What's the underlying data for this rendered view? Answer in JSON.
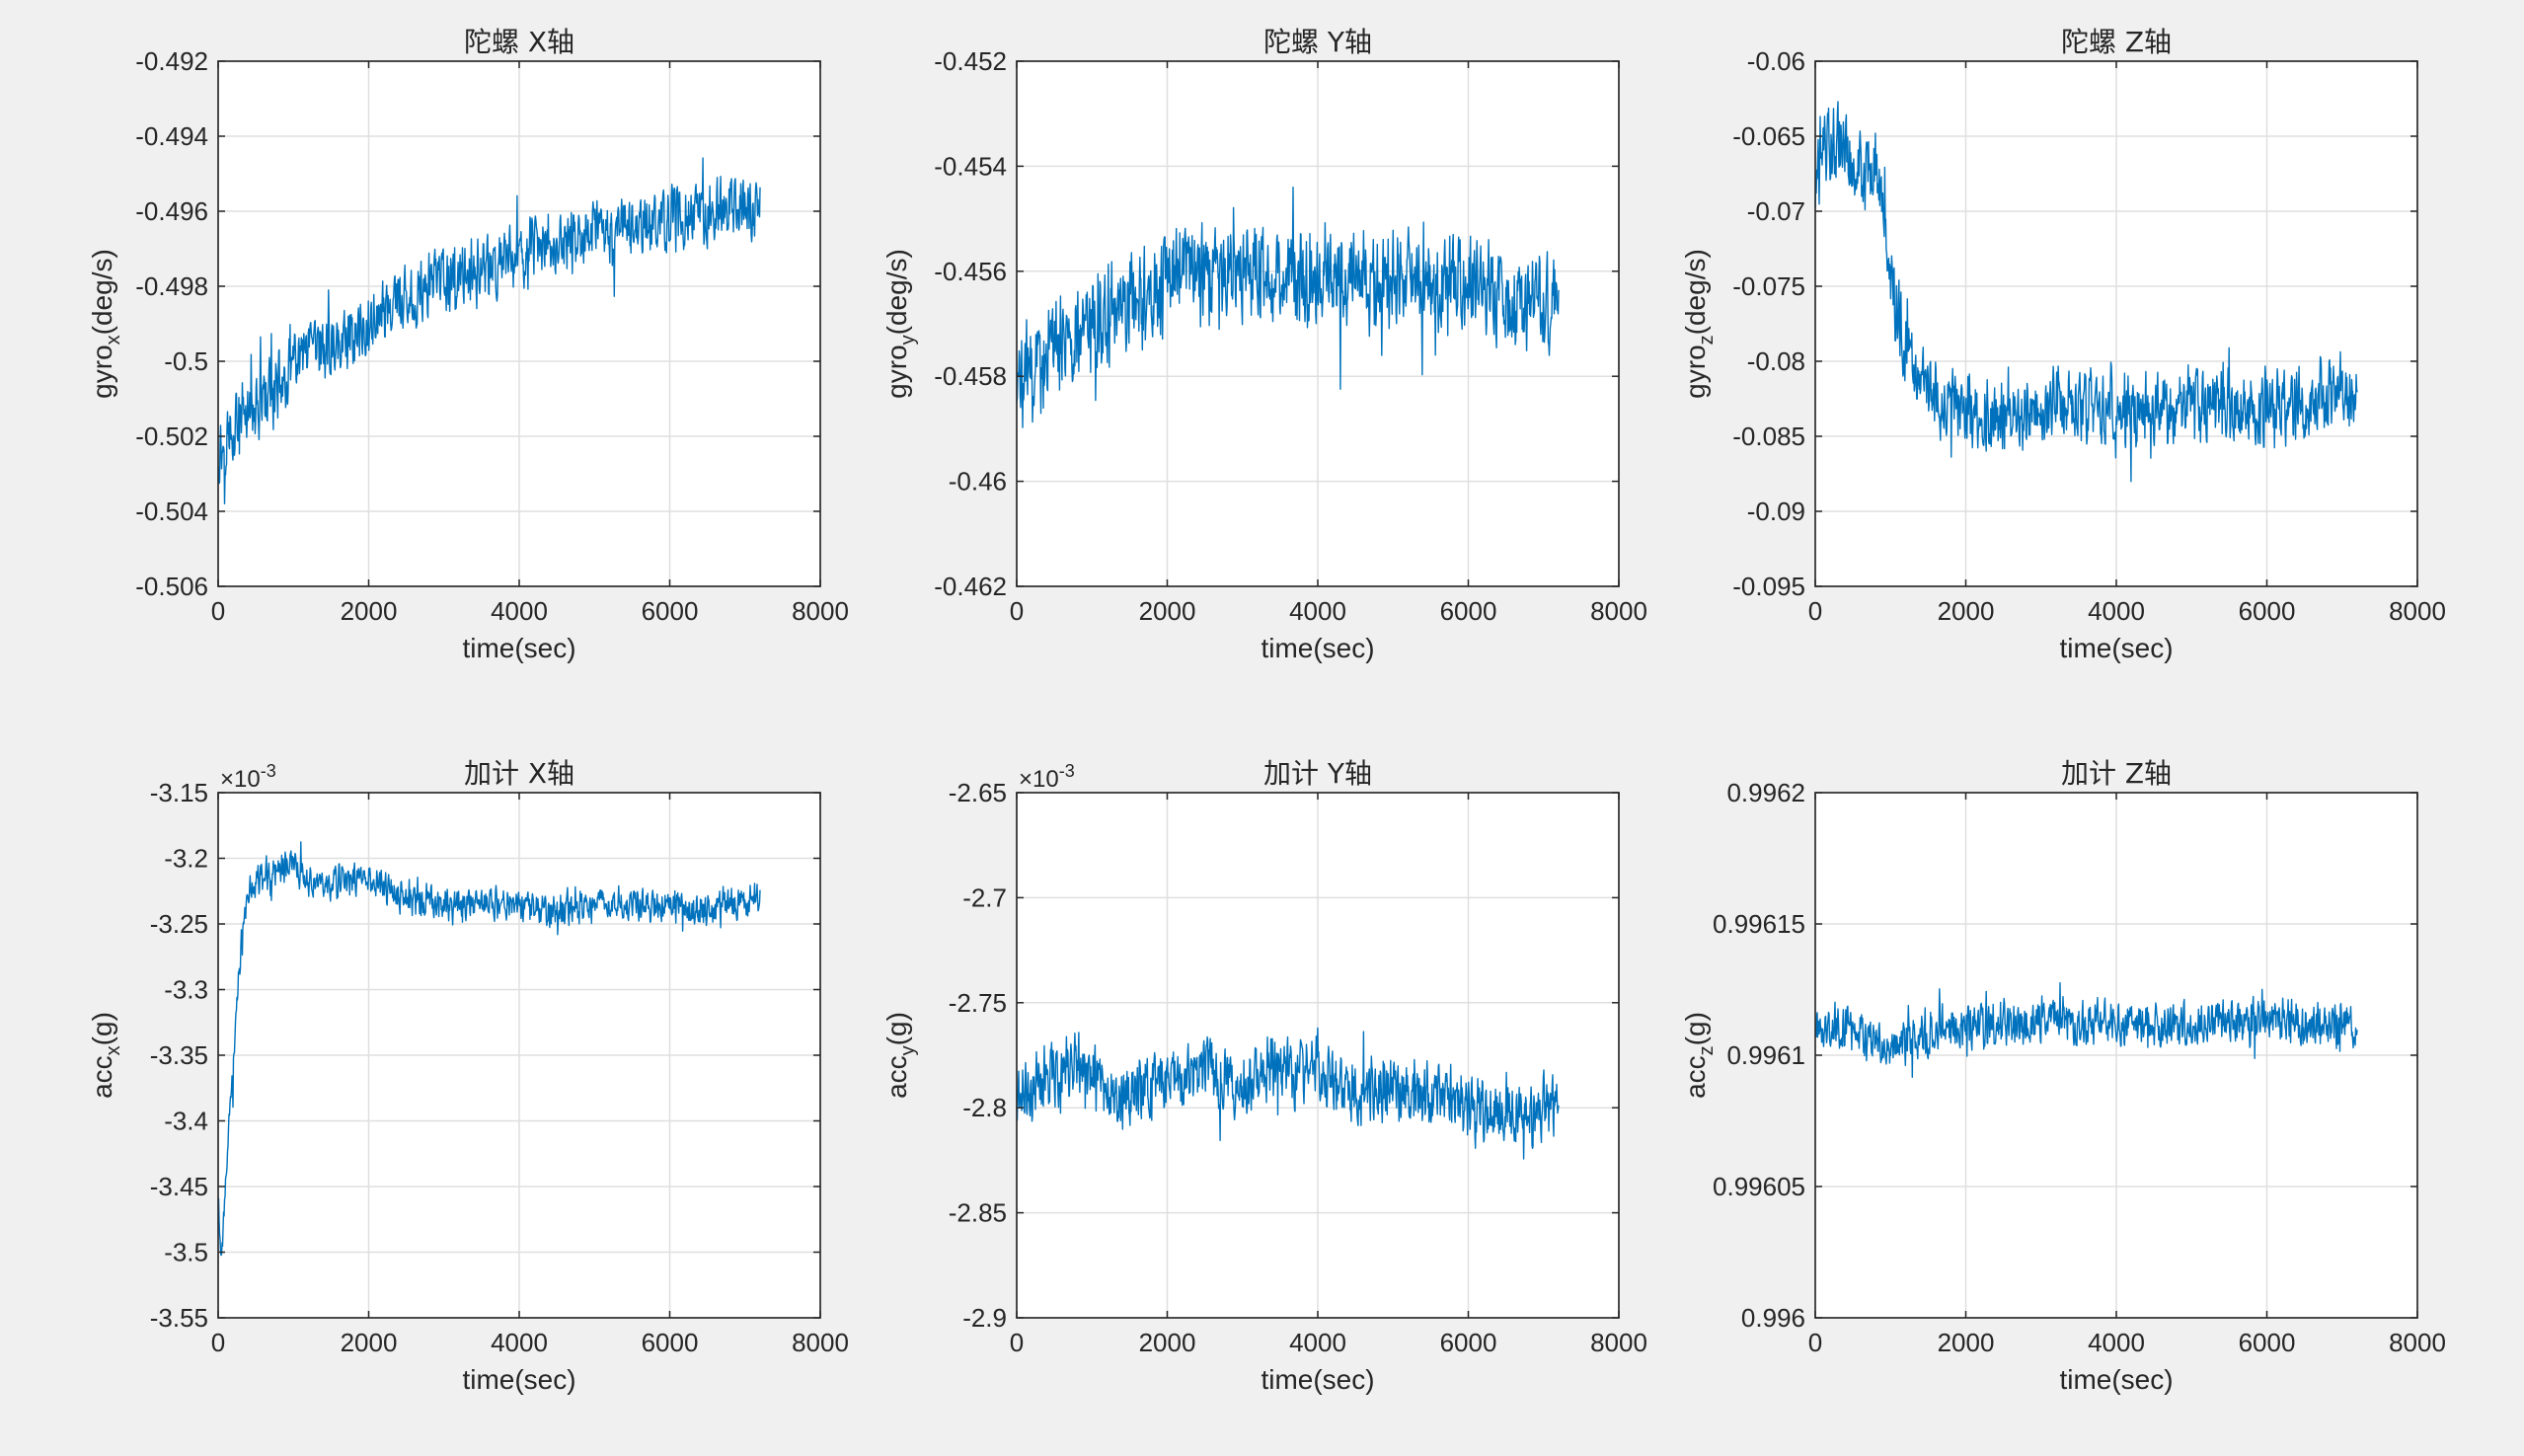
{
  "figure": {
    "background": "#f0f0f0",
    "series_color": "#0072bd"
  },
  "chart_data": [
    {
      "type": "line",
      "title": "陀螺 X轴",
      "xlabel": "time(sec)",
      "ylabel": {
        "base": "gyro",
        "sub": "x",
        "rest": "(deg/s)"
      },
      "xlim": [
        0,
        8000
      ],
      "ylim": [
        -0.506,
        -0.492
      ],
      "xticks": [
        0,
        2000,
        4000,
        6000,
        8000
      ],
      "xticklabels": [
        "0",
        "2000",
        "4000",
        "6000",
        "8000"
      ],
      "yticks": [
        -0.506,
        -0.504,
        -0.502,
        -0.5,
        -0.498,
        -0.496,
        -0.494,
        -0.492
      ],
      "yticklabels": [
        "-0.506",
        "-0.504",
        "-0.502",
        "-0.5",
        "-0.498",
        "-0.496",
        "-0.494",
        "-0.492"
      ],
      "exponent": null,
      "grid": true,
      "series": [
        {
          "x": [
            0,
            250,
            500,
            750,
            1000,
            1250,
            1500,
            1750,
            2000,
            2250,
            2500,
            2750,
            3000,
            3250,
            3500,
            3750,
            4000,
            4250,
            4500,
            4750,
            5000,
            5250,
            5500,
            5750,
            6000,
            6250,
            6500,
            6750,
            7000,
            7200
          ],
          "y": [
            -0.5025,
            -0.5015,
            -0.5012,
            -0.5008,
            -0.5002,
            -0.4998,
            -0.4996,
            -0.4993,
            -0.499,
            -0.4986,
            -0.4984,
            -0.4981,
            -0.4979,
            -0.4977,
            -0.4976,
            -0.4974,
            -0.4972,
            -0.497,
            -0.497,
            -0.4968,
            -0.4966,
            -0.4965,
            -0.4964,
            -0.4963,
            -0.4962,
            -0.4961,
            -0.4961,
            -0.496,
            -0.4959,
            -0.496
          ],
          "noise_amplitude": 0.0012
        }
      ]
    },
    {
      "type": "line",
      "title": "陀螺 Y轴",
      "xlabel": "time(sec)",
      "ylabel": {
        "base": "gyro",
        "sub": "y",
        "rest": "(deg/s)"
      },
      "xlim": [
        0,
        8000
      ],
      "ylim": [
        -0.462,
        -0.452
      ],
      "xticks": [
        0,
        2000,
        4000,
        6000,
        8000
      ],
      "xticklabels": [
        "0",
        "2000",
        "4000",
        "6000",
        "8000"
      ],
      "yticks": [
        -0.462,
        -0.46,
        -0.458,
        -0.456,
        -0.454,
        -0.452
      ],
      "yticklabels": [
        "-0.462",
        "-0.46",
        "-0.458",
        "-0.456",
        "-0.454",
        "-0.452"
      ],
      "exponent": null,
      "grid": true,
      "series": [
        {
          "x": [
            0,
            250,
            500,
            750,
            1000,
            1250,
            1500,
            1750,
            2000,
            2250,
            2500,
            2750,
            3000,
            3250,
            3500,
            3750,
            4000,
            4250,
            4500,
            4750,
            5000,
            5250,
            5500,
            5750,
            6000,
            6250,
            6500,
            6750,
            7000,
            7200
          ],
          "y": [
            -0.4582,
            -0.4578,
            -0.4575,
            -0.4572,
            -0.457,
            -0.4568,
            -0.4566,
            -0.4564,
            -0.4562,
            -0.456,
            -0.456,
            -0.4559,
            -0.456,
            -0.4561,
            -0.456,
            -0.4561,
            -0.4562,
            -0.4562,
            -0.4561,
            -0.4562,
            -0.4561,
            -0.4562,
            -0.4563,
            -0.4562,
            -0.4562,
            -0.4563,
            -0.4564,
            -0.4565,
            -0.4567,
            -0.4566
          ],
          "noise_amplitude": 0.0013
        }
      ]
    },
    {
      "type": "line",
      "title": "陀螺 Z轴",
      "xlabel": "time(sec)",
      "ylabel": {
        "base": "gyro",
        "sub": "z",
        "rest": "(deg/s)"
      },
      "xlim": [
        0,
        8000
      ],
      "ylim": [
        -0.095,
        -0.06
      ],
      "xticks": [
        0,
        2000,
        4000,
        6000,
        8000
      ],
      "xticklabels": [
        "0",
        "2000",
        "4000",
        "6000",
        "8000"
      ],
      "yticks": [
        -0.095,
        -0.09,
        -0.085,
        -0.08,
        -0.075,
        -0.07,
        -0.065,
        -0.06
      ],
      "yticklabels": [
        "-0.095",
        "-0.09",
        "-0.085",
        "-0.08",
        "-0.075",
        "-0.07",
        "-0.065",
        "-0.06"
      ],
      "exponent": null,
      "grid": true,
      "series": [
        {
          "x": [
            0,
            100,
            250,
            400,
            550,
            700,
            800,
            900,
            1000,
            1100,
            1200,
            1350,
            1500,
            1750,
            2000,
            2500,
            3000,
            3500,
            4000,
            4500,
            5000,
            5500,
            6000,
            6500,
            7000,
            7200
          ],
          "y": [
            -0.069,
            -0.066,
            -0.065,
            -0.066,
            -0.067,
            -0.068,
            -0.067,
            -0.07,
            -0.074,
            -0.077,
            -0.079,
            -0.081,
            -0.082,
            -0.083,
            -0.083,
            -0.084,
            -0.083,
            -0.083,
            -0.083,
            -0.083,
            -0.083,
            -0.083,
            -0.083,
            -0.083,
            -0.082,
            -0.082
          ],
          "noise_amplitude": 0.0035
        }
      ]
    },
    {
      "type": "line",
      "title": "加计 X轴",
      "xlabel": "time(sec)",
      "ylabel": {
        "base": "acc",
        "sub": "x",
        "rest": "(g)"
      },
      "xlim": [
        0,
        8000
      ],
      "ylim": [
        -3.55,
        -3.15
      ],
      "xticks": [
        0,
        2000,
        4000,
        6000,
        8000
      ],
      "xticklabels": [
        "0",
        "2000",
        "4000",
        "6000",
        "8000"
      ],
      "yticks": [
        -3.55,
        -3.5,
        -3.45,
        -3.4,
        -3.35,
        -3.3,
        -3.25,
        -3.2,
        -3.15
      ],
      "yticklabels": [
        "-3.55",
        "-3.5",
        "-3.45",
        "-3.4",
        "-3.35",
        "-3.3",
        "-3.25",
        "-3.2",
        "-3.15"
      ],
      "exponent": {
        "base": "×10",
        "power": "-3"
      },
      "grid": true,
      "series": [
        {
          "x": [
            0,
            50,
            100,
            150,
            200,
            250,
            300,
            350,
            400,
            500,
            700,
            900,
            1200,
            1500,
            2000,
            2500,
            3000,
            3500,
            4000,
            4500,
            5000,
            5500,
            6000,
            6500,
            7000,
            7200
          ],
          "y": [
            -3.46,
            -3.5,
            -3.45,
            -3.4,
            -3.36,
            -3.31,
            -3.27,
            -3.24,
            -3.225,
            -3.215,
            -3.21,
            -3.205,
            -3.215,
            -3.22,
            -3.215,
            -3.23,
            -3.235,
            -3.235,
            -3.235,
            -3.24,
            -3.235,
            -3.235,
            -3.235,
            -3.24,
            -3.235,
            -3.23
          ],
          "noise_amplitude": 0.018
        }
      ]
    },
    {
      "type": "line",
      "title": "加计 Y轴",
      "xlabel": "time(sec)",
      "ylabel": {
        "base": "acc",
        "sub": "y",
        "rest": "(g)"
      },
      "xlim": [
        0,
        8000
      ],
      "ylim": [
        -2.9,
        -2.65
      ],
      "xticks": [
        0,
        2000,
        4000,
        6000,
        8000
      ],
      "xticklabels": [
        "0",
        "2000",
        "4000",
        "6000",
        "8000"
      ],
      "yticks": [
        -2.9,
        -2.85,
        -2.8,
        -2.75,
        -2.7,
        -2.65
      ],
      "yticklabels": [
        "-2.9",
        "-2.85",
        "-2.8",
        "-2.75",
        "-2.7",
        "-2.65"
      ],
      "exponent": {
        "base": "×10",
        "power": "-3"
      },
      "grid": true,
      "series": [
        {
          "x": [
            0,
            250,
            500,
            750,
            1000,
            1250,
            1500,
            1750,
            2000,
            2250,
            2500,
            2750,
            3000,
            3250,
            3500,
            3750,
            4000,
            4250,
            4500,
            4750,
            5000,
            5250,
            5500,
            5750,
            6000,
            6250,
            6500,
            6750,
            7000,
            7200
          ],
          "y": [
            -2.795,
            -2.79,
            -2.785,
            -2.78,
            -2.785,
            -2.79,
            -2.795,
            -2.79,
            -2.785,
            -2.785,
            -2.78,
            -2.785,
            -2.79,
            -2.785,
            -2.78,
            -2.785,
            -2.78,
            -2.79,
            -2.795,
            -2.79,
            -2.79,
            -2.795,
            -2.8,
            -2.795,
            -2.8,
            -2.805,
            -2.8,
            -2.805,
            -2.8,
            -2.8
          ],
          "noise_amplitude": 0.022
        }
      ]
    },
    {
      "type": "line",
      "title": "加计 Z轴",
      "xlabel": "time(sec)",
      "ylabel": {
        "base": "acc",
        "sub": "z",
        "rest": "(g)"
      },
      "xlim": [
        0,
        8000
      ],
      "ylim": [
        0.996,
        0.9962
      ],
      "xticks": [
        0,
        2000,
        4000,
        6000,
        8000
      ],
      "xticklabels": [
        "0",
        "2000",
        "4000",
        "6000",
        "8000"
      ],
      "yticks": [
        0.996,
        0.99605,
        0.9961,
        0.99615,
        0.9962
      ],
      "yticklabels": [
        "0.996",
        "0.99605",
        "0.9961",
        "0.99615",
        "0.9962"
      ],
      "exponent": null,
      "grid": true,
      "series": [
        {
          "x": [
            0,
            250,
            500,
            750,
            1000,
            1250,
            1500,
            1750,
            2000,
            2250,
            2500,
            2750,
            3000,
            3250,
            3500,
            3750,
            4000,
            4250,
            4500,
            4750,
            5000,
            5250,
            5500,
            5750,
            6000,
            6250,
            6500,
            6750,
            7000,
            7200
          ],
          "y": [
            0.99611,
            0.996112,
            0.996108,
            0.996105,
            0.996104,
            0.996106,
            0.996108,
            0.996112,
            0.99611,
            0.996112,
            0.996113,
            0.996112,
            0.996113,
            0.996114,
            0.996112,
            0.996114,
            0.996113,
            0.996112,
            0.996112,
            0.996111,
            0.996112,
            0.996112,
            0.996113,
            0.996112,
            0.996114,
            0.996113,
            0.996112,
            0.996113,
            0.996112,
            0.996112
          ],
          "noise_amplitude": 1.2e-05
        }
      ]
    }
  ]
}
